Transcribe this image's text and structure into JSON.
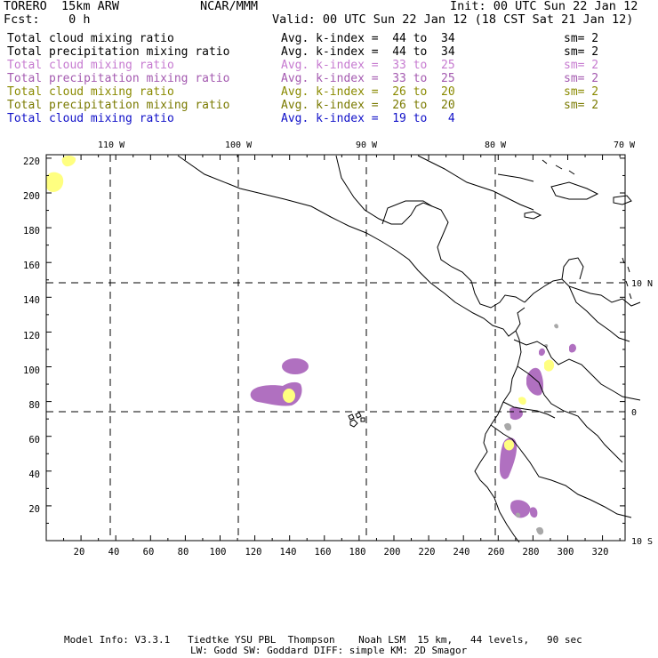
{
  "header": {
    "title": "TORERO  15km ARW",
    "org": "NCAR/MMM",
    "init": "Init: 00 UTC Sun 22 Jan 12",
    "fcst": "Fcst:    0 h",
    "valid": "Valid: 00 UTC Sun 22 Jan 12 (18 CST Sat 21 Jan 12)"
  },
  "legend": [
    {
      "field": "Total cloud mixing ratio",
      "range": "Avg. k-index =  44 to  34",
      "sm": "sm= 2",
      "color": "#000000"
    },
    {
      "field": "Total precipitation mixing ratio",
      "range": "Avg. k-index =  44 to  34",
      "sm": "sm= 2",
      "color": "#000000"
    },
    {
      "field": "Total cloud mixing ratio",
      "range": "Avg. k-index =  33 to  25",
      "sm": "sm= 2",
      "color": "#c67ad0"
    },
    {
      "field": "Total precipitation mixing ratio",
      "range": "Avg. k-index =  33 to  25",
      "sm": "sm= 2",
      "color": "#a45ab0"
    },
    {
      "field": "Total cloud mixing ratio",
      "range": "Avg. k-index =  26 to  20",
      "sm": "sm= 2",
      "color": "#8a8a00"
    },
    {
      "field": "Total precipitation mixing ratio",
      "range": "Avg. k-index =  26 to  20",
      "sm": "sm= 2",
      "color": "#7a7a00"
    },
    {
      "field": "Total cloud mixing ratio",
      "range": "Avg. k-index =  19 to   4",
      "sm": "",
      "color": "#1010c8"
    }
  ],
  "map": {
    "lon_labels": [
      "110 W",
      "100 W",
      "90 W",
      "80 W",
      "70 W"
    ],
    "lat_labels": [
      "10 N",
      "0",
      "10 S"
    ],
    "y_ticks": [
      "220",
      "200",
      "180",
      "160",
      "140",
      "120",
      "100",
      "80",
      "60",
      "40",
      "20"
    ],
    "x_ticks": [
      "20",
      "40",
      "60",
      "80",
      "100",
      "120",
      "140",
      "160",
      "180",
      "200",
      "220",
      "240",
      "260",
      "280",
      "300",
      "320"
    ],
    "colors": {
      "purple": "#b070c0",
      "yellow": "#ffff80",
      "gray": "#a8a8a8",
      "coast": "#000000"
    }
  },
  "footer": {
    "line1": "Model Info: V3.3.1   Tiedtke YSU PBL  Thompson    Noah LSM  15 km,   44 levels,   90 sec",
    "line2": "LW: Godd SW: Goddard DIFF: simple KM: 2D Smagor"
  }
}
